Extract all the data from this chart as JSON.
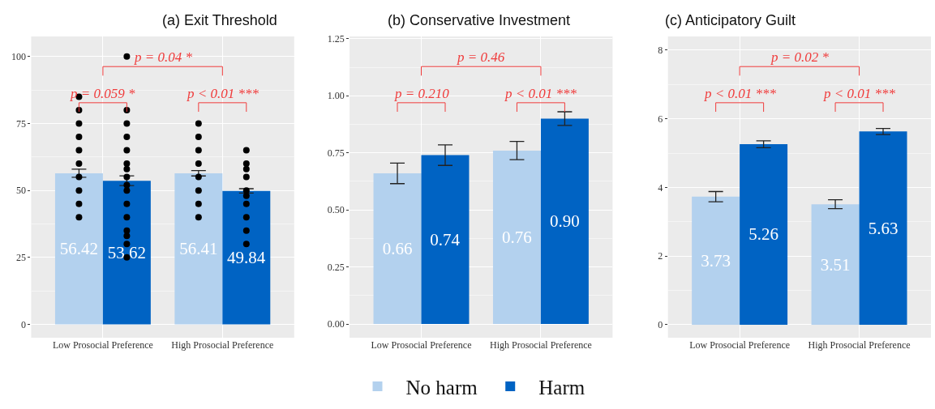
{
  "chart_data": [
    {
      "type": "bar",
      "title": "(a) Exit Threshold",
      "categories": [
        "Low Prosocial Preference",
        "High Prosocial Preference"
      ],
      "ylim": [
        -5,
        107.5
      ],
      "yticks": [
        0,
        25,
        50,
        75,
        100
      ],
      "grid": true,
      "legend": "bottom",
      "annotations": [
        "p = 0.059 *",
        "p < 0.01 ***",
        "p = 0.04 *"
      ],
      "series": [
        {
          "name": "No harm",
          "color": "#b3d1ee",
          "values": [
            56.42,
            56.41
          ],
          "value_labels": [
            "56.42",
            "56.41"
          ],
          "errors": [
            1.5,
            1.0
          ]
        },
        {
          "name": "Harm",
          "color": "#0063c3",
          "values": [
            53.62,
            49.84
          ],
          "value_labels": [
            "53.62",
            "49.84"
          ],
          "errors": [
            1.8,
            0.8
          ]
        },
        {
          "type": "scatter",
          "color": "#000000",
          "x": [
            "Low Prosocial Preference",
            "Low Prosocial Preference",
            "Low Prosocial Preference",
            "Low Prosocial Preference",
            "Low Prosocial Preference",
            "Low Prosocial Preference",
            "Low Prosocial Preference",
            "Low Prosocial Preference",
            "Low Prosocial Preference",
            "Low Prosocial Preference",
            "High Prosocial Preference",
            "High Prosocial Preference",
            "High Prosocial Preference",
            "High Prosocial Preference",
            "High Prosocial Preference",
            "High Prosocial Preference",
            "High Prosocial Preference",
            "High Prosocial Preference"
          ],
          "values": [
            40,
            45,
            50,
            55,
            60,
            65,
            70,
            75,
            80,
            85,
            40,
            45,
            50,
            55,
            60,
            65,
            70,
            75
          ]
        },
        {
          "type": "scatter",
          "color": "#000000",
          "x": [
            "Low Prosocial Preference",
            "Low Prosocial Preference",
            "Low Prosocial Preference",
            "Low Prosocial Preference",
            "Low Prosocial Preference",
            "Low Prosocial Preference",
            "Low Prosocial Preference",
            "Low Prosocial Preference",
            "Low Prosocial Preference",
            "Low Prosocial Preference",
            "Low Prosocial Preference",
            "Low Prosocial Preference",
            "Low Prosocial Preference",
            "Low Prosocial Preference",
            "Low Prosocial Preference",
            "Low Prosocial Preference",
            "High Prosocial Preference",
            "High Prosocial Preference",
            "High Prosocial Preference",
            "High Prosocial Preference",
            "High Prosocial Preference",
            "High Prosocial Preference",
            "High Prosocial Preference",
            "High Prosocial Preference",
            "High Prosocial Preference",
            "High Prosocial Preference"
          ],
          "values": [
            25,
            30,
            33,
            35,
            40,
            45,
            50,
            52,
            55,
            58,
            60,
            65,
            70,
            75,
            80,
            100,
            30,
            35,
            40,
            45,
            48,
            50,
            55,
            58,
            60,
            65
          ]
        }
      ]
    },
    {
      "type": "bar",
      "title": "(b) Conservative Investment",
      "categories": [
        "Low Prosocial Preference",
        "High Prosocial Preference"
      ],
      "ylim": [
        -0.06,
        1.26
      ],
      "yticks": [
        {
          "value": 0,
          "label": "0.00"
        },
        0.25,
        {
          "value": 0.5,
          "label": "0.50"
        },
        0.75,
        {
          "value": 1,
          "label": "1.00"
        },
        1.25
      ],
      "grid": true,
      "legend": "bottom",
      "annotations": [
        "p = 0.210",
        "p < 0.01 ***",
        "p = 0.46"
      ],
      "series": [
        {
          "name": "No harm",
          "color": "#b3d1ee",
          "values": [
            0.66,
            0.76
          ],
          "value_labels": [
            "0.66",
            "0.76"
          ],
          "errors": [
            0.045,
            0.04
          ]
        },
        {
          "name": "Harm",
          "color": "#0063c3",
          "values": [
            0.74,
            0.9
          ],
          "value_labels": [
            "0.74",
            "0.90"
          ],
          "errors": [
            0.045,
            0.03
          ]
        }
      ]
    },
    {
      "type": "bar",
      "title": "(c) Anticipatory Guilt",
      "categories": [
        "Low Prosocial Preference",
        "High Prosocial Preference"
      ],
      "ylim": [
        -0.38,
        8.4
      ],
      "yticks": [
        0,
        2,
        4,
        6,
        8
      ],
      "grid": true,
      "legend": "bottom",
      "annotations": [
        "p < 0.01 ***",
        "p < 0.01 ***",
        "p = 0.02 *"
      ],
      "series": [
        {
          "name": "No harm",
          "color": "#b3d1ee",
          "values": [
            3.73,
            3.51
          ],
          "value_labels": [
            "3.73",
            "3.51"
          ],
          "errors": [
            0.15,
            0.13
          ]
        },
        {
          "name": "Harm",
          "color": "#0063c3",
          "values": [
            5.26,
            5.63
          ],
          "value_labels": [
            "5.26",
            "5.63"
          ],
          "errors": [
            0.1,
            0.09
          ]
        }
      ]
    }
  ]
}
